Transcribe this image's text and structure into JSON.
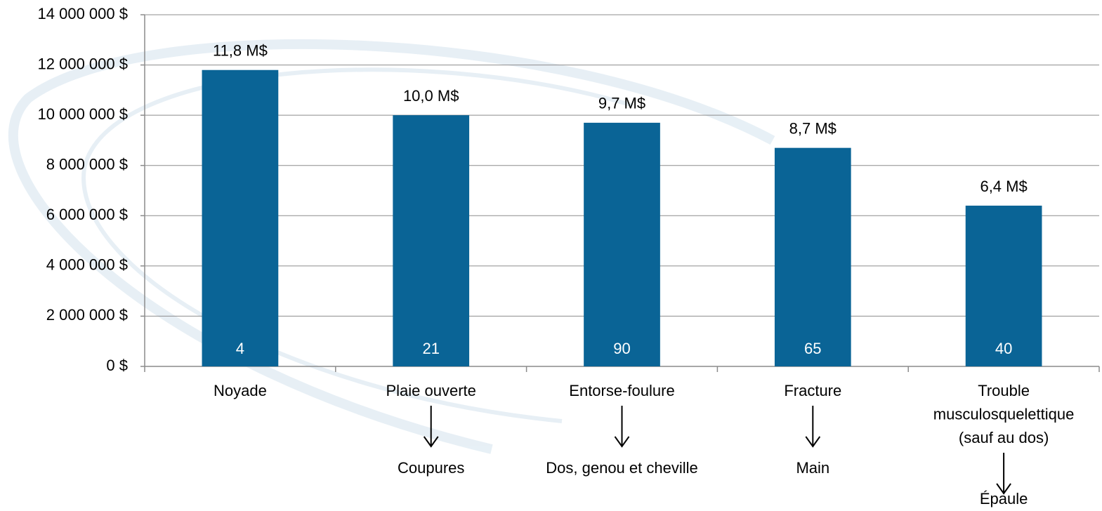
{
  "chart_data": {
    "type": "bar",
    "categories": [
      "Noyade",
      "Plaie ouverte",
      "Entorse-foulure",
      "Fracture",
      "Trouble\nmusculosquelettique\n(sauf au dos)"
    ],
    "values": [
      11800000,
      10000000,
      9700000,
      8700000,
      6400000
    ],
    "value_labels": [
      "11,8 M$",
      "10,0 M$",
      "9,7 M$",
      "8,7 M$",
      "6,4 M$"
    ],
    "counts": [
      4,
      21,
      90,
      65,
      40
    ],
    "sub_labels": [
      null,
      "Coupures",
      "Dos, genou et cheville",
      "Main",
      "Épaule"
    ],
    "color": "#0a6496",
    "ylim": [
      0,
      14000000
    ],
    "yticks": [
      {
        "value": 0,
        "label": "0 $"
      },
      {
        "value": 2000000,
        "label": "2 000 000 $"
      },
      {
        "value": 4000000,
        "label": "4 000 000 $"
      },
      {
        "value": 6000000,
        "label": "6 000 000 $"
      },
      {
        "value": 8000000,
        "label": "8 000 000 $"
      },
      {
        "value": 10000000,
        "label": "10 000 000 $"
      },
      {
        "value": 12000000,
        "label": "12 000 000 $"
      },
      {
        "value": 14000000,
        "label": "14 000 000 $"
      }
    ],
    "grid": true
  }
}
